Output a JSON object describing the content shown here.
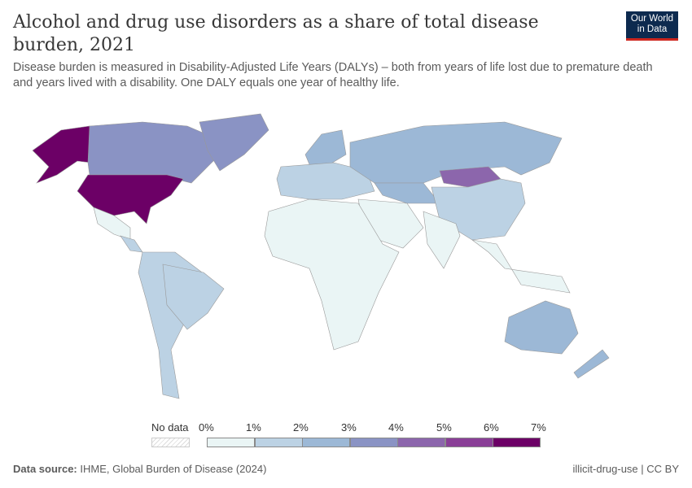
{
  "header": {
    "title": "Alcohol and drug use disorders as a share of total disease burden, 2021",
    "subtitle": "Disease burden is measured in Disability-Adjusted Life Years (DALYs) – both from years of life lost due to premature death and years lived with a disability. One DALY equals one year of healthy life.",
    "logo": "Our World in Data"
  },
  "legend": {
    "no_data": "No data",
    "ticks": [
      "0%",
      "1%",
      "2%",
      "3%",
      "4%",
      "5%",
      "6%",
      "7%"
    ],
    "colors": [
      "#eaf5f5",
      "#bcd2e4",
      "#9cb8d6",
      "#8a93c4",
      "#8c66ac",
      "#8a3f97",
      "#6c0066"
    ]
  },
  "map_regions": [
    {
      "name": "United States",
      "bin": 6
    },
    {
      "name": "Alaska",
      "bin": 6
    },
    {
      "name": "Canada",
      "bin": 3
    },
    {
      "name": "Greenland",
      "bin": 3
    },
    {
      "name": "Mexico",
      "bin": 0
    },
    {
      "name": "Central America",
      "bin": 1
    },
    {
      "name": "South America",
      "bin": 1
    },
    {
      "name": "Brazil",
      "bin": 1
    },
    {
      "name": "Europe",
      "bin": 1
    },
    {
      "name": "Scandinavia",
      "bin": 2
    },
    {
      "name": "Russia",
      "bin": 2
    },
    {
      "name": "Central Asia",
      "bin": 2
    },
    {
      "name": "Mongolia",
      "bin": 4
    },
    {
      "name": "China",
      "bin": 1
    },
    {
      "name": "Middle East",
      "bin": 0
    },
    {
      "name": "India",
      "bin": 0
    },
    {
      "name": "Africa",
      "bin": 0
    },
    {
      "name": "Southeast Asia",
      "bin": 0
    },
    {
      "name": "Australia",
      "bin": 2
    },
    {
      "name": "New Zealand",
      "bin": 2
    }
  ],
  "footer": {
    "source_label": "Data source:",
    "source": "IHME, Global Burden of Disease (2024)",
    "slug": "illicit-drug-use | CC BY"
  }
}
